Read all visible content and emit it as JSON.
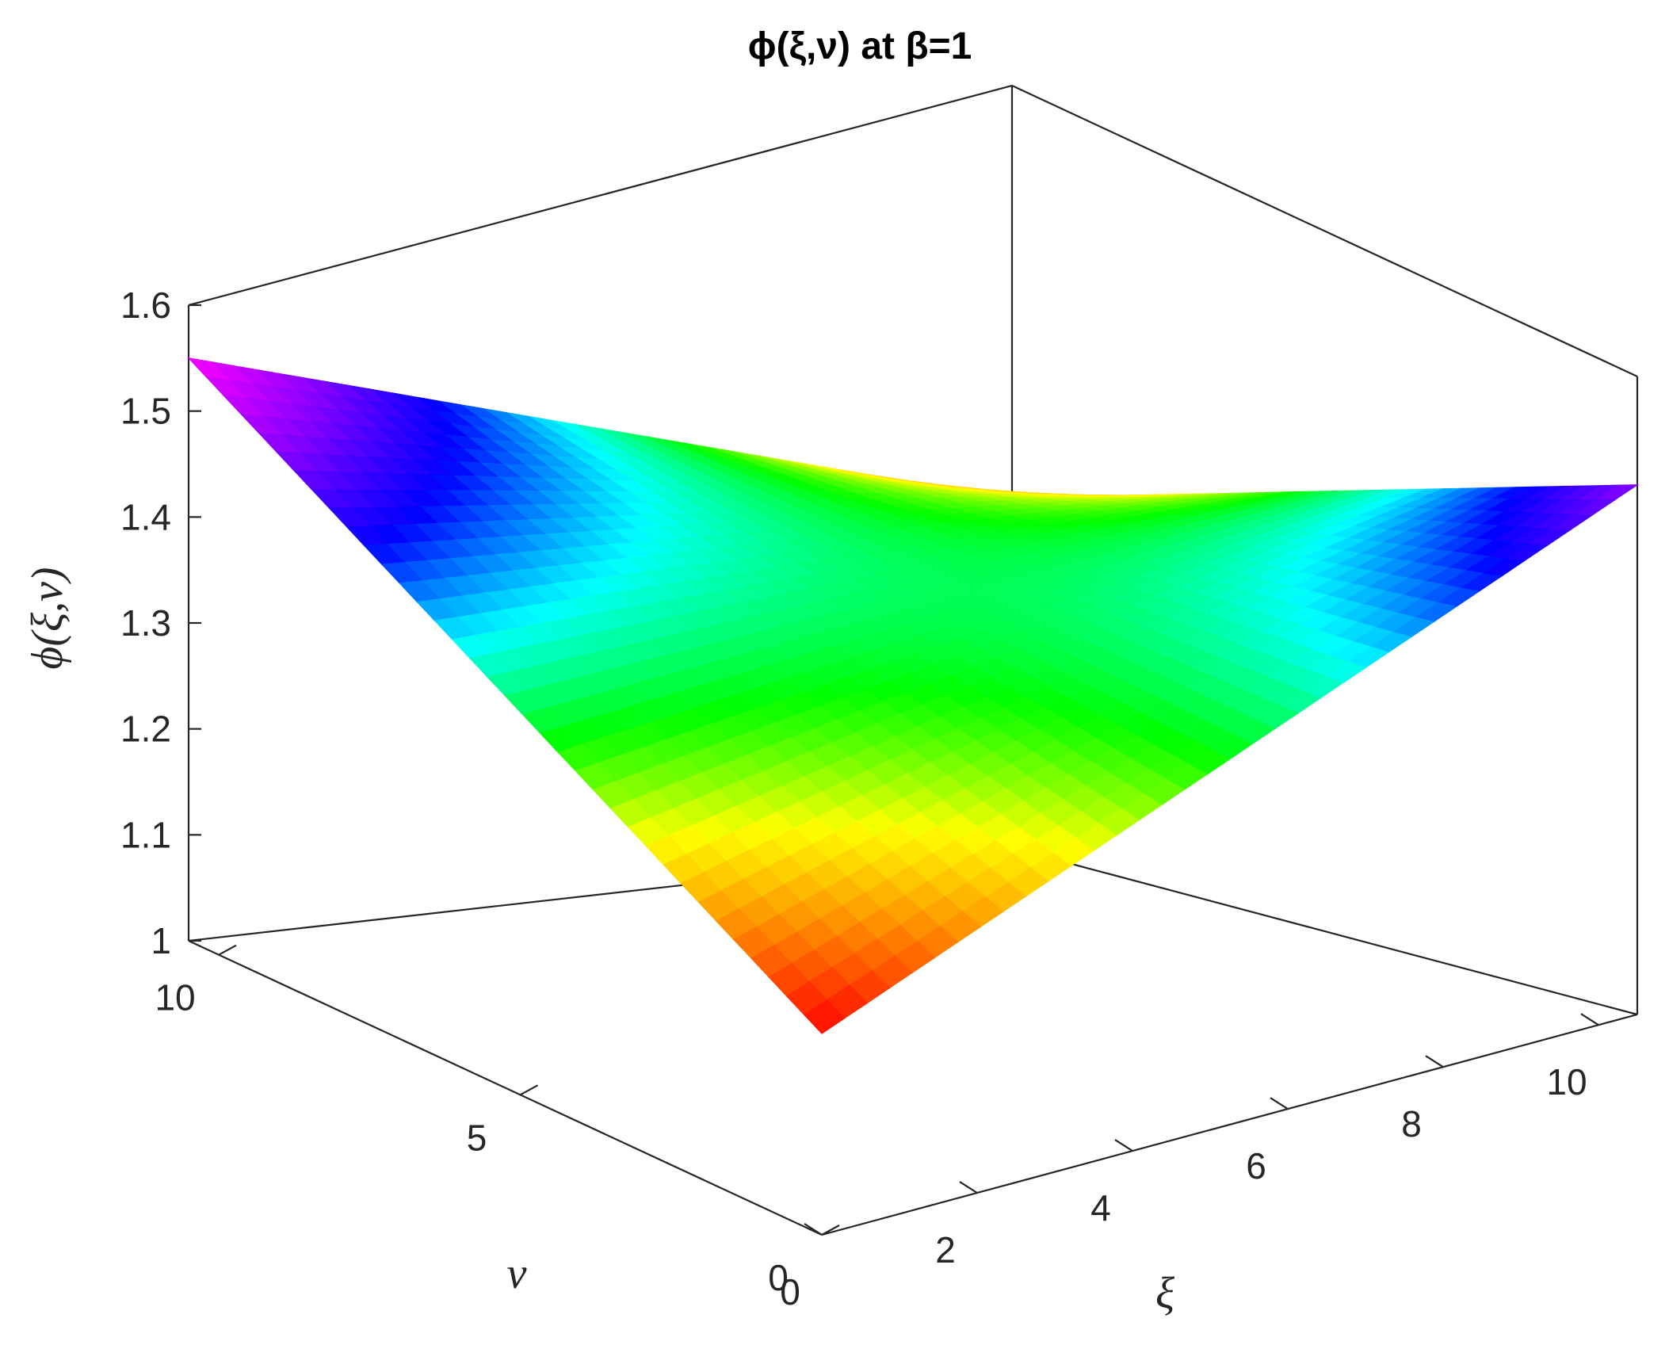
{
  "chart_data": {
    "type": "surface3d",
    "title": "ϕ(ξ,ν) at β=1",
    "xlabel": "ξ",
    "ylabel": "ν",
    "zlabel": "ϕ(ξ,ν)",
    "xlim": [
      0,
      10.5
    ],
    "ylim": [
      0,
      10.5
    ],
    "zlim": [
      1,
      1.6
    ],
    "xticks": [
      "0",
      "2",
      "4",
      "6",
      "8",
      "10"
    ],
    "yticks": [
      "0",
      "5",
      "10"
    ],
    "zticks": [
      "1",
      "1.1",
      "1.2",
      "1.3",
      "1.4",
      "1.5",
      "1.6"
    ],
    "colormap": [
      "#ff0000",
      "#ff7f00",
      "#ffff00",
      "#00ff00",
      "#00ffff",
      "#0000ff",
      "#8b00ff",
      "#ff00ff"
    ],
    "surface_samples": [
      {
        "xi": 0,
        "nu": 0,
        "phi": 1.19
      },
      {
        "xi": 0,
        "nu": 10.5,
        "phi": 1.55
      },
      {
        "xi": 10.5,
        "nu": 0,
        "phi": 1.5
      },
      {
        "xi": 10.5,
        "nu": 10.5,
        "phi": 1.21
      }
    ],
    "grid": false,
    "box": true
  }
}
